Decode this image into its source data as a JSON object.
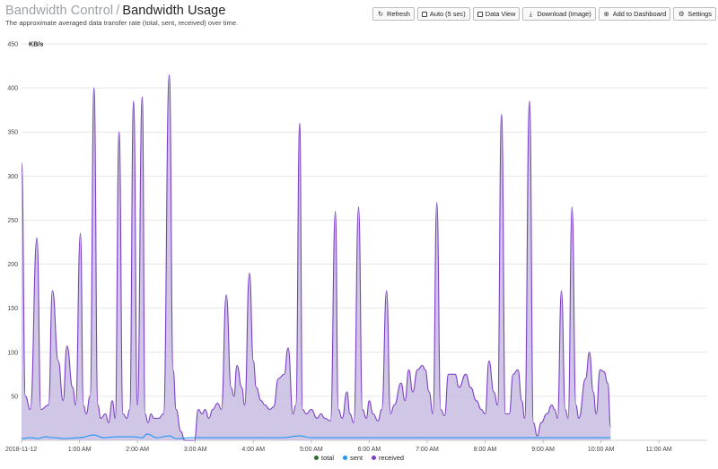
{
  "header": {
    "crumb": "Bandwidth Control",
    "separator": "/",
    "page": "Bandwidth Usage",
    "subtitle": "The approximate averaged data transfer rate (total, sent, received) over time."
  },
  "toolbar": {
    "refresh": "Refresh",
    "auto": "Auto (5 sec)",
    "data_view": "Data View",
    "download": "Download (Image)",
    "add_dashboard": "Add to Dashboard",
    "settings": "Settings"
  },
  "chart_data": {
    "type": "area",
    "ylabel": "KB/s",
    "ylim": [
      0,
      450
    ],
    "yticks": [
      50,
      100,
      150,
      200,
      250,
      300,
      350,
      400,
      450
    ],
    "x_range": [
      "2018-11-12 00:00",
      "2018-11-12 11:50"
    ],
    "xtick_labels": [
      "2018-11-12",
      "1:00 AM",
      "2:00 AM",
      "3:00 AM",
      "4:00 AM",
      "5:00 AM",
      "6:00 AM",
      "7:00 AM",
      "8:00 AM",
      "9:00 AM",
      "10:00 AM",
      "11:00 AM"
    ],
    "grid": true,
    "legend_position": "bottom",
    "colors": {
      "total": "#2e6b2e",
      "sent": "#2196f3",
      "received": "#7b3fc6",
      "fill": "#c8bde2"
    },
    "series": [
      {
        "name": "received",
        "points": [
          [
            "00:00",
            315
          ],
          [
            "00:04",
            50
          ],
          [
            "00:09",
            35
          ],
          [
            "00:16",
            230
          ],
          [
            "00:20",
            35
          ],
          [
            "00:28",
            40
          ],
          [
            "00:32",
            170
          ],
          [
            "00:38",
            90
          ],
          [
            "00:43",
            45
          ],
          [
            "00:47",
            107
          ],
          [
            "00:53",
            60
          ],
          [
            "00:56",
            40
          ],
          [
            "01:01",
            235
          ],
          [
            "01:04",
            40
          ],
          [
            "01:07",
            30
          ],
          [
            "01:11",
            50
          ],
          [
            "01:15",
            400
          ],
          [
            "01:19",
            40
          ],
          [
            "01:22",
            25
          ],
          [
            "01:27",
            30
          ],
          [
            "01:30",
            20
          ],
          [
            "01:34",
            45
          ],
          [
            "01:37",
            25
          ],
          [
            "01:41",
            350
          ],
          [
            "01:45",
            30
          ],
          [
            "01:49",
            25
          ],
          [
            "01:52",
            35
          ],
          [
            "01:56",
            385
          ],
          [
            "02:00",
            40
          ],
          [
            "02:05",
            390
          ],
          [
            "02:08",
            30
          ],
          [
            "02:11",
            20
          ],
          [
            "02:14",
            30
          ],
          [
            "02:17",
            25
          ],
          [
            "02:22",
            25
          ],
          [
            "02:27",
            30
          ],
          [
            "02:33",
            415
          ],
          [
            "02:37",
            80
          ],
          [
            "02:40",
            35
          ],
          [
            "02:45",
            10
          ],
          [
            "02:49",
            0
          ],
          [
            "02:59",
            0
          ],
          [
            "03:03",
            35
          ],
          [
            "03:07",
            30
          ],
          [
            "03:10",
            35
          ],
          [
            "03:14",
            25
          ],
          [
            "03:18",
            35
          ],
          [
            "03:23",
            42
          ],
          [
            "03:27",
            35
          ],
          [
            "03:32",
            165
          ],
          [
            "03:37",
            60
          ],
          [
            "03:40",
            50
          ],
          [
            "03:43",
            85
          ],
          [
            "03:48",
            60
          ],
          [
            "03:51",
            40
          ],
          [
            "03:56",
            190
          ],
          [
            "04:00",
            90
          ],
          [
            "04:03",
            60
          ],
          [
            "04:08",
            45
          ],
          [
            "04:12",
            40
          ],
          [
            "04:17",
            35
          ],
          [
            "04:21",
            38
          ],
          [
            "04:26",
            70
          ],
          [
            "04:32",
            75
          ],
          [
            "04:36",
            105
          ],
          [
            "04:41",
            30
          ],
          [
            "04:44",
            40
          ],
          [
            "04:48",
            360
          ],
          [
            "04:51",
            35
          ],
          [
            "04:55",
            30
          ],
          [
            "05:00",
            35
          ],
          [
            "05:06",
            25
          ],
          [
            "05:10",
            30
          ],
          [
            "05:14",
            25
          ],
          [
            "05:20",
            22
          ],
          [
            "05:25",
            260
          ],
          [
            "05:28",
            35
          ],
          [
            "05:32",
            25
          ],
          [
            "05:37",
            55
          ],
          [
            "05:40",
            30
          ],
          [
            "05:44",
            20
          ],
          [
            "05:49",
            265
          ],
          [
            "05:53",
            35
          ],
          [
            "05:57",
            25
          ],
          [
            "06:00",
            45
          ],
          [
            "06:04",
            30
          ],
          [
            "06:09",
            22
          ],
          [
            "06:13",
            35
          ],
          [
            "06:18",
            170
          ],
          [
            "06:22",
            30
          ],
          [
            "06:26",
            40
          ],
          [
            "06:33",
            65
          ],
          [
            "06:37",
            45
          ],
          [
            "06:41",
            80
          ],
          [
            "06:45",
            55
          ],
          [
            "06:50",
            80
          ],
          [
            "06:55",
            85
          ],
          [
            "06:58",
            80
          ],
          [
            "07:02",
            55
          ],
          [
            "07:06",
            30
          ],
          [
            "07:10",
            270
          ],
          [
            "07:14",
            35
          ],
          [
            "07:18",
            28
          ],
          [
            "07:22",
            75
          ],
          [
            "07:29",
            75
          ],
          [
            "07:33",
            60
          ],
          [
            "07:40",
            75
          ],
          [
            "07:45",
            60
          ],
          [
            "07:51",
            45
          ],
          [
            "07:56",
            35
          ],
          [
            "08:00",
            30
          ],
          [
            "08:04",
            90
          ],
          [
            "08:09",
            55
          ],
          [
            "08:13",
            40
          ],
          [
            "08:17",
            370
          ],
          [
            "08:21",
            30
          ],
          [
            "08:25",
            30
          ],
          [
            "08:29",
            75
          ],
          [
            "08:34",
            80
          ],
          [
            "08:38",
            45
          ],
          [
            "08:41",
            25
          ],
          [
            "08:46",
            385
          ],
          [
            "08:50",
            20
          ],
          [
            "08:54",
            5
          ],
          [
            "08:58",
            20
          ],
          [
            "09:04",
            30
          ],
          [
            "09:09",
            40
          ],
          [
            "09:12",
            35
          ],
          [
            "09:15",
            25
          ],
          [
            "09:19",
            170
          ],
          [
            "09:23",
            35
          ],
          [
            "09:26",
            25
          ],
          [
            "09:30",
            265
          ],
          [
            "09:34",
            40
          ],
          [
            "09:37",
            25
          ],
          [
            "09:44",
            70
          ],
          [
            "09:48",
            100
          ],
          [
            "09:52",
            55
          ],
          [
            "09:55",
            30
          ],
          [
            "09:59",
            80
          ],
          [
            "10:03",
            78
          ],
          [
            "10:07",
            65
          ],
          [
            "10:10",
            15
          ]
        ]
      },
      {
        "name": "sent",
        "points": [
          [
            "00:00",
            2
          ],
          [
            "00:09",
            3
          ],
          [
            "00:17",
            2
          ],
          [
            "00:25",
            4
          ],
          [
            "00:33",
            3
          ],
          [
            "00:45",
            2
          ],
          [
            "01:00",
            3
          ],
          [
            "01:15",
            6
          ],
          [
            "01:25",
            3
          ],
          [
            "01:40",
            4
          ],
          [
            "01:55",
            4
          ],
          [
            "02:05",
            3
          ],
          [
            "02:10",
            7
          ],
          [
            "02:20",
            3
          ],
          [
            "02:33",
            5
          ],
          [
            "02:40",
            2
          ],
          [
            "03:00",
            3
          ],
          [
            "03:30",
            3
          ],
          [
            "04:00",
            3
          ],
          [
            "04:30",
            3
          ],
          [
            "04:48",
            5
          ],
          [
            "05:00",
            3
          ],
          [
            "05:30",
            3
          ],
          [
            "06:00",
            3
          ],
          [
            "06:30",
            3
          ],
          [
            "07:00",
            3
          ],
          [
            "07:30",
            3
          ],
          [
            "08:00",
            3
          ],
          [
            "08:30",
            3
          ],
          [
            "09:00",
            3
          ],
          [
            "09:30",
            3
          ],
          [
            "10:00",
            3
          ],
          [
            "10:10",
            3
          ]
        ]
      },
      {
        "name": "total",
        "points": []
      }
    ]
  }
}
